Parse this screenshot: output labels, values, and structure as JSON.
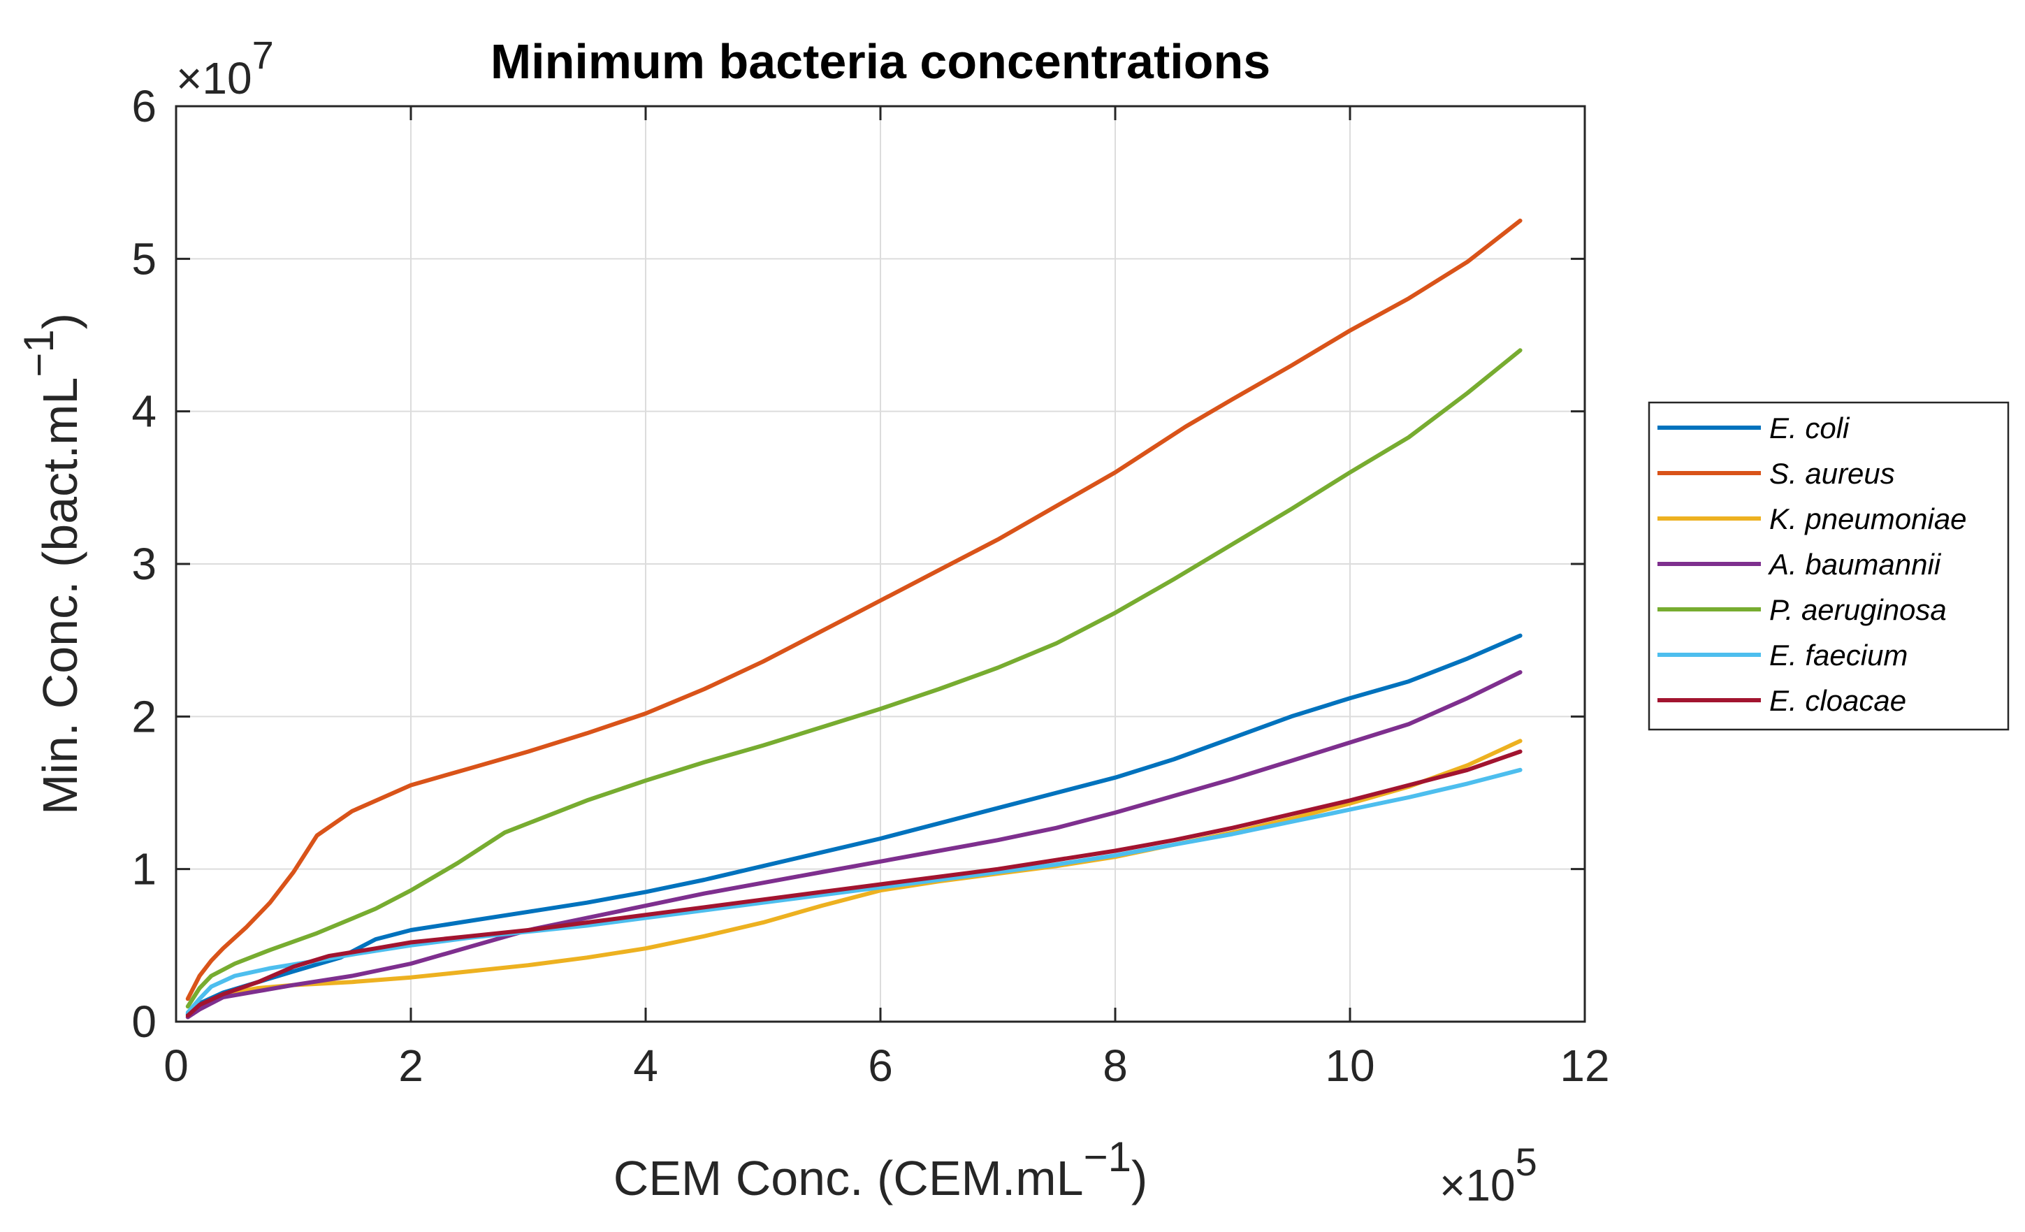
{
  "chart_data": {
    "type": "line",
    "title": "Minimum bacteria concentrations",
    "xlabel": "CEM Conc. (CEM.mL",
    "xlabel_sup": "−1",
    "xlabel_end": ")",
    "ylabel": "Min. Conc. (bact.mL",
    "ylabel_sup": "−1",
    "ylabel_end": ")",
    "x_multiplier_base": "×10",
    "x_multiplier_exp": "5",
    "y_multiplier_base": "×10",
    "y_multiplier_exp": "7",
    "xlim": [
      0,
      12
    ],
    "ylim": [
      0,
      6
    ],
    "xticks": [
      "0",
      "2",
      "4",
      "6",
      "8",
      "10",
      "12"
    ],
    "yticks": [
      "0",
      "1",
      "2",
      "3",
      "4",
      "5",
      "6"
    ],
    "grid": true,
    "legend_position": "right",
    "series": [
      {
        "name": "E. coli",
        "color": "#0072BD",
        "x": [
          0.1,
          0.2,
          0.4,
          0.7,
          1.0,
          1.4,
          1.7,
          2.0,
          2.5,
          3.0,
          3.5,
          4.0,
          4.5,
          5.0,
          5.5,
          6.0,
          6.5,
          7.0,
          7.5,
          8.0,
          8.5,
          9.0,
          9.5,
          10.0,
          10.5,
          11.0,
          11.45
        ],
        "values": [
          0.05,
          0.12,
          0.19,
          0.26,
          0.33,
          0.42,
          0.54,
          0.6,
          0.66,
          0.72,
          0.78,
          0.85,
          0.93,
          1.02,
          1.11,
          1.2,
          1.3,
          1.4,
          1.5,
          1.6,
          1.72,
          1.86,
          2.0,
          2.12,
          2.23,
          2.38,
          2.53
        ]
      },
      {
        "name": "S. aureus",
        "color": "#D95319",
        "x": [
          0.1,
          0.2,
          0.3,
          0.4,
          0.6,
          0.8,
          1.0,
          1.2,
          1.5,
          2.0,
          2.5,
          3.0,
          3.5,
          4.0,
          4.5,
          5.0,
          5.5,
          6.0,
          6.5,
          7.0,
          7.5,
          8.0,
          8.6,
          9.0,
          9.5,
          10.0,
          10.5,
          11.0,
          11.45
        ],
        "values": [
          0.15,
          0.3,
          0.4,
          0.48,
          0.62,
          0.78,
          0.98,
          1.22,
          1.38,
          1.55,
          1.66,
          1.77,
          1.89,
          2.02,
          2.18,
          2.36,
          2.56,
          2.76,
          2.96,
          3.16,
          3.38,
          3.6,
          3.9,
          4.08,
          4.3,
          4.53,
          4.74,
          4.98,
          5.25
        ]
      },
      {
        "name": "K. pneumoniae",
        "color": "#EDB120",
        "x": [
          0.1,
          0.2,
          0.4,
          0.7,
          1.0,
          1.5,
          2.0,
          2.5,
          3.0,
          3.5,
          4.0,
          4.5,
          5.0,
          5.5,
          6.0,
          6.5,
          7.0,
          7.5,
          8.0,
          8.5,
          9.0,
          9.5,
          10.0,
          10.5,
          11.0,
          11.45
        ],
        "values": [
          0.03,
          0.1,
          0.18,
          0.22,
          0.24,
          0.26,
          0.29,
          0.33,
          0.37,
          0.42,
          0.48,
          0.56,
          0.65,
          0.76,
          0.86,
          0.92,
          0.97,
          1.02,
          1.08,
          1.16,
          1.24,
          1.33,
          1.43,
          1.54,
          1.68,
          1.84
        ]
      },
      {
        "name": "A. baumannii",
        "color": "#7E2F8E",
        "x": [
          0.1,
          0.2,
          0.4,
          0.7,
          1.0,
          1.5,
          2.0,
          2.5,
          3.0,
          3.5,
          4.0,
          4.5,
          5.0,
          5.5,
          6.0,
          6.5,
          7.0,
          7.5,
          8.0,
          8.5,
          9.0,
          9.5,
          10.0,
          10.5,
          11.0,
          11.45
        ],
        "values": [
          0.03,
          0.08,
          0.16,
          0.2,
          0.24,
          0.3,
          0.38,
          0.49,
          0.6,
          0.68,
          0.76,
          0.84,
          0.91,
          0.98,
          1.05,
          1.12,
          1.19,
          1.27,
          1.37,
          1.48,
          1.59,
          1.71,
          1.83,
          1.95,
          2.12,
          2.29
        ]
      },
      {
        "name": "P. aeruginosa",
        "color": "#77AC30",
        "x": [
          0.1,
          0.2,
          0.3,
          0.5,
          0.8,
          1.2,
          1.7,
          2.0,
          2.4,
          2.8,
          3.0,
          3.5,
          4.0,
          4.5,
          5.0,
          5.5,
          6.0,
          6.5,
          7.0,
          7.5,
          8.0,
          8.5,
          9.0,
          9.5,
          10.0,
          10.5,
          11.0,
          11.45
        ],
        "values": [
          0.1,
          0.22,
          0.3,
          0.38,
          0.47,
          0.58,
          0.74,
          0.86,
          1.04,
          1.24,
          1.3,
          1.45,
          1.58,
          1.7,
          1.81,
          1.93,
          2.05,
          2.18,
          2.32,
          2.48,
          2.68,
          2.9,
          3.13,
          3.36,
          3.6,
          3.83,
          4.12,
          4.4
        ]
      },
      {
        "name": "E. faecium",
        "color": "#4DBEEE",
        "x": [
          0.1,
          0.2,
          0.3,
          0.5,
          0.8,
          1.2,
          1.5,
          2.0,
          2.5,
          3.0,
          3.5,
          4.0,
          4.5,
          5.0,
          5.5,
          6.0,
          6.5,
          7.0,
          7.5,
          8.0,
          8.5,
          9.0,
          9.5,
          10.0,
          10.5,
          11.0,
          11.45
        ],
        "values": [
          0.06,
          0.15,
          0.23,
          0.3,
          0.35,
          0.4,
          0.44,
          0.5,
          0.55,
          0.59,
          0.63,
          0.68,
          0.73,
          0.78,
          0.83,
          0.88,
          0.93,
          0.98,
          1.03,
          1.09,
          1.16,
          1.23,
          1.31,
          1.39,
          1.47,
          1.56,
          1.65
        ]
      },
      {
        "name": "E. cloacae",
        "color": "#A2142F",
        "x": [
          0.1,
          0.2,
          0.4,
          0.7,
          1.0,
          1.3,
          1.7,
          2.0,
          2.5,
          3.0,
          3.5,
          4.0,
          4.5,
          5.0,
          5.5,
          6.0,
          6.5,
          7.0,
          7.5,
          8.0,
          8.5,
          9.0,
          9.5,
          10.0,
          10.5,
          11.0,
          11.45
        ],
        "values": [
          0.04,
          0.11,
          0.18,
          0.26,
          0.36,
          0.43,
          0.48,
          0.52,
          0.56,
          0.6,
          0.65,
          0.7,
          0.75,
          0.8,
          0.85,
          0.9,
          0.95,
          1.0,
          1.06,
          1.12,
          1.19,
          1.27,
          1.36,
          1.45,
          1.55,
          1.65,
          1.77
        ]
      }
    ]
  }
}
